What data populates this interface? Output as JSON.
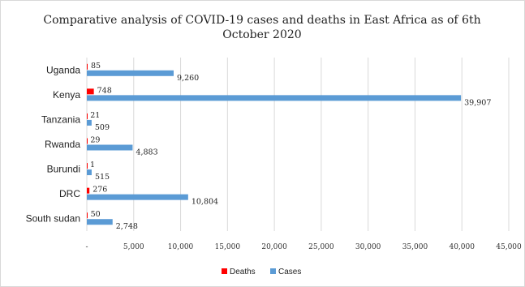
{
  "chart_data": {
    "type": "bar",
    "orientation": "horizontal",
    "title_line1": "Comparative analysis of COVID-19 cases and deaths in East Africa as of 6th",
    "title_line2": "October 2020",
    "categories": [
      "Uganda",
      "Kenya",
      "Tanzania",
      "Rwanda",
      "Burundi",
      "DRC",
      "South sudan"
    ],
    "series": [
      {
        "name": "Deaths",
        "color": "#ff0000",
        "values": [
          85,
          748,
          21,
          29,
          1,
          276,
          50
        ],
        "labels": [
          "85",
          "748",
          "21",
          "29",
          "1",
          "276",
          "50"
        ]
      },
      {
        "name": "Cases",
        "color": "#5b9bd5",
        "values": [
          9260,
          39907,
          509,
          4883,
          515,
          10804,
          2748
        ],
        "labels": [
          "9,260",
          "39,907",
          "509",
          "4,883",
          "515",
          "10,804",
          "2,748"
        ]
      }
    ],
    "xlim": [
      0,
      45000
    ],
    "xticks": [
      0,
      5000,
      10000,
      15000,
      20000,
      25000,
      30000,
      35000,
      40000,
      45000
    ],
    "xtick_labels": [
      "-",
      "5,000",
      "10,000",
      "15,000",
      "20,000",
      "25,000",
      "30,000",
      "35,000",
      "40,000",
      "45,000"
    ],
    "grid": true,
    "legend_position": "bottom"
  }
}
